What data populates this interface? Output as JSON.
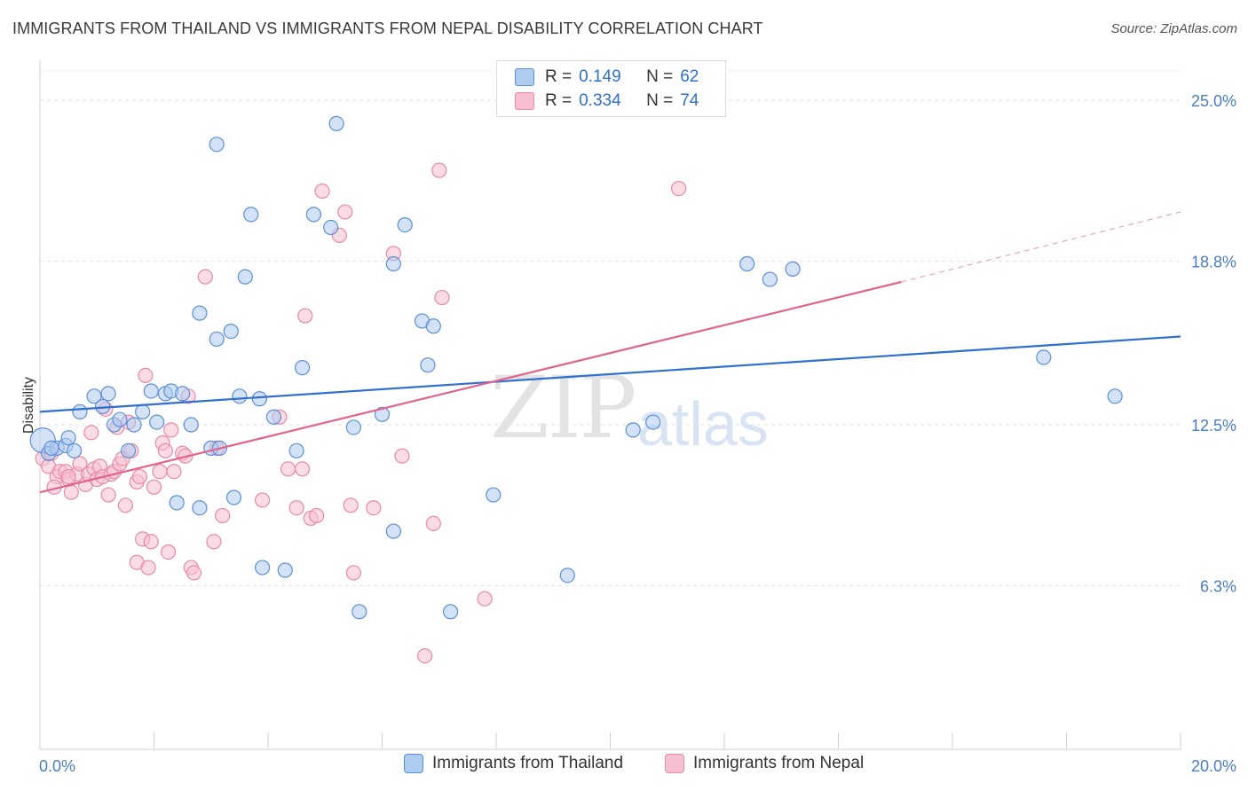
{
  "header": {
    "title": "IMMIGRANTS FROM THAILAND VS IMMIGRANTS FROM NEPAL DISABILITY CORRELATION CHART",
    "source": "Source: ZipAtlas.com"
  },
  "legend_top": {
    "rows": [
      {
        "r_label": "R =",
        "r_value": "0.149",
        "n_label": "N =",
        "n_value": "62"
      },
      {
        "r_label": "R =",
        "r_value": "0.334",
        "n_label": "N =",
        "n_value": "74"
      }
    ]
  },
  "watermark": {
    "zip": "ZIP",
    "atlas": "atlas"
  },
  "colors": {
    "thailand_fill": "#aecbf0",
    "thailand_stroke": "#5b8fd6",
    "thailand_line": "#2f6fcf",
    "nepal_fill": "#f7c0d0",
    "nepal_stroke": "#e889a8",
    "nepal_line": "#e0648e",
    "tick_label": "#4a7cc9",
    "grid": "#e2e2e2"
  },
  "chart_data": {
    "type": "scatter",
    "title": "IMMIGRANTS FROM THAILAND VS IMMIGRANTS FROM NEPAL DISABILITY CORRELATION CHART",
    "xlabel": "",
    "ylabel": "Disability",
    "xlim": [
      0,
      20
    ],
    "ylim": [
      0,
      26.3
    ],
    "x_tick_labels": [
      "0.0%",
      "20.0%"
    ],
    "y_ticks": [
      6.3,
      12.5,
      18.8,
      25.0
    ],
    "y_tick_labels": [
      "6.3%",
      "12.5%",
      "18.8%",
      "25.0%"
    ],
    "grid": true,
    "legend_position": "top-center and bottom",
    "series": [
      {
        "name": "Immigrants from Thailand",
        "R": 0.149,
        "N": 62,
        "trend": {
          "x0": 0,
          "y0": 13.0,
          "x1": 20,
          "y1": 15.9
        },
        "points": [
          [
            0.05,
            11.9
          ],
          [
            0.15,
            11.4
          ],
          [
            0.3,
            11.6
          ],
          [
            0.45,
            11.7
          ],
          [
            0.5,
            12.0
          ],
          [
            0.6,
            11.5
          ],
          [
            0.7,
            13.0
          ],
          [
            0.95,
            13.6
          ],
          [
            1.1,
            13.2
          ],
          [
            1.2,
            13.7
          ],
          [
            1.3,
            12.5
          ],
          [
            1.4,
            12.7
          ],
          [
            1.55,
            11.5
          ],
          [
            1.65,
            12.5
          ],
          [
            1.8,
            13.0
          ],
          [
            1.95,
            13.8
          ],
          [
            2.05,
            12.6
          ],
          [
            2.2,
            13.7
          ],
          [
            2.3,
            13.8
          ],
          [
            2.5,
            13.7
          ],
          [
            2.65,
            12.5
          ],
          [
            3.0,
            11.6
          ],
          [
            3.1,
            23.3
          ],
          [
            3.15,
            11.6
          ],
          [
            2.8,
            16.8
          ],
          [
            3.1,
            15.8
          ],
          [
            3.35,
            16.1
          ],
          [
            3.5,
            13.6
          ],
          [
            3.6,
            18.2
          ],
          [
            3.7,
            20.6
          ],
          [
            3.85,
            13.5
          ],
          [
            4.1,
            12.8
          ],
          [
            4.5,
            11.5
          ],
          [
            4.6,
            14.7
          ],
          [
            4.8,
            20.6
          ],
          [
            5.1,
            20.1
          ],
          [
            5.2,
            24.1
          ],
          [
            5.5,
            12.4
          ],
          [
            6.0,
            12.9
          ],
          [
            6.2,
            18.7
          ],
          [
            6.4,
            20.2
          ],
          [
            6.7,
            16.5
          ],
          [
            6.8,
            14.8
          ],
          [
            6.9,
            16.3
          ],
          [
            2.4,
            9.5
          ],
          [
            2.8,
            9.3
          ],
          [
            3.4,
            9.7
          ],
          [
            3.9,
            7.0
          ],
          [
            4.3,
            6.9
          ],
          [
            5.6,
            5.3
          ],
          [
            6.2,
            8.4
          ],
          [
            7.2,
            5.3
          ],
          [
            7.95,
            9.8
          ],
          [
            9.25,
            6.7
          ],
          [
            10.4,
            12.3
          ],
          [
            10.75,
            12.6
          ],
          [
            12.4,
            18.7
          ],
          [
            12.8,
            18.1
          ],
          [
            13.2,
            18.5
          ],
          [
            17.6,
            15.1
          ],
          [
            18.85,
            13.6
          ],
          [
            0.2,
            11.6
          ]
        ]
      },
      {
        "name": "Immigrants from Nepal",
        "R": 0.334,
        "N": 74,
        "trend_solid": {
          "x0": 0,
          "y0": 9.9,
          "x1": 15.1,
          "y1": 18.0
        },
        "trend_dashed": {
          "x0": 15.1,
          "y0": 18.0,
          "x1": 20,
          "y1": 20.7
        },
        "points": [
          [
            0.05,
            11.2
          ],
          [
            0.15,
            10.9
          ],
          [
            0.2,
            11.4
          ],
          [
            0.3,
            10.5
          ],
          [
            0.35,
            10.7
          ],
          [
            0.45,
            10.7
          ],
          [
            0.5,
            10.4
          ],
          [
            0.55,
            9.9
          ],
          [
            0.65,
            10.6
          ],
          [
            0.7,
            11.0
          ],
          [
            0.8,
            10.2
          ],
          [
            0.85,
            10.6
          ],
          [
            0.9,
            12.2
          ],
          [
            0.95,
            10.8
          ],
          [
            1.0,
            10.4
          ],
          [
            1.05,
            10.9
          ],
          [
            1.1,
            10.5
          ],
          [
            1.15,
            13.1
          ],
          [
            1.25,
            10.6
          ],
          [
            1.3,
            10.7
          ],
          [
            1.35,
            12.4
          ],
          [
            1.4,
            11.0
          ],
          [
            1.45,
            11.2
          ],
          [
            1.5,
            9.4
          ],
          [
            1.55,
            12.6
          ],
          [
            1.6,
            11.5
          ],
          [
            1.7,
            7.2
          ],
          [
            1.7,
            10.3
          ],
          [
            1.75,
            10.5
          ],
          [
            1.8,
            8.1
          ],
          [
            1.85,
            14.4
          ],
          [
            1.9,
            7.0
          ],
          [
            1.95,
            8.0
          ],
          [
            2.0,
            10.1
          ],
          [
            2.1,
            10.7
          ],
          [
            2.15,
            11.8
          ],
          [
            2.2,
            11.5
          ],
          [
            2.25,
            7.6
          ],
          [
            2.3,
            12.3
          ],
          [
            2.35,
            10.7
          ],
          [
            2.5,
            11.4
          ],
          [
            2.55,
            11.3
          ],
          [
            2.6,
            13.6
          ],
          [
            2.65,
            7.0
          ],
          [
            2.7,
            6.8
          ],
          [
            2.9,
            18.2
          ],
          [
            3.05,
            8.0
          ],
          [
            3.1,
            11.6
          ],
          [
            3.2,
            9.0
          ],
          [
            3.9,
            9.6
          ],
          [
            4.2,
            12.8
          ],
          [
            4.35,
            10.8
          ],
          [
            4.5,
            9.3
          ],
          [
            4.6,
            10.8
          ],
          [
            4.65,
            16.7
          ],
          [
            4.75,
            8.9
          ],
          [
            4.85,
            9.0
          ],
          [
            4.95,
            21.5
          ],
          [
            5.25,
            19.8
          ],
          [
            5.35,
            20.7
          ],
          [
            5.45,
            9.4
          ],
          [
            5.5,
            6.8
          ],
          [
            5.85,
            9.3
          ],
          [
            6.2,
            19.1
          ],
          [
            6.35,
            11.3
          ],
          [
            6.75,
            3.6
          ],
          [
            6.9,
            8.7
          ],
          [
            7.0,
            22.3
          ],
          [
            7.05,
            17.4
          ],
          [
            7.8,
            5.8
          ],
          [
            11.2,
            21.6
          ],
          [
            0.5,
            10.5
          ],
          [
            0.25,
            10.1
          ],
          [
            1.2,
            9.8
          ]
        ]
      }
    ]
  },
  "legend_bottom": {
    "items": [
      {
        "label": "Immigrants from Thailand"
      },
      {
        "label": "Immigrants from Nepal"
      }
    ]
  }
}
